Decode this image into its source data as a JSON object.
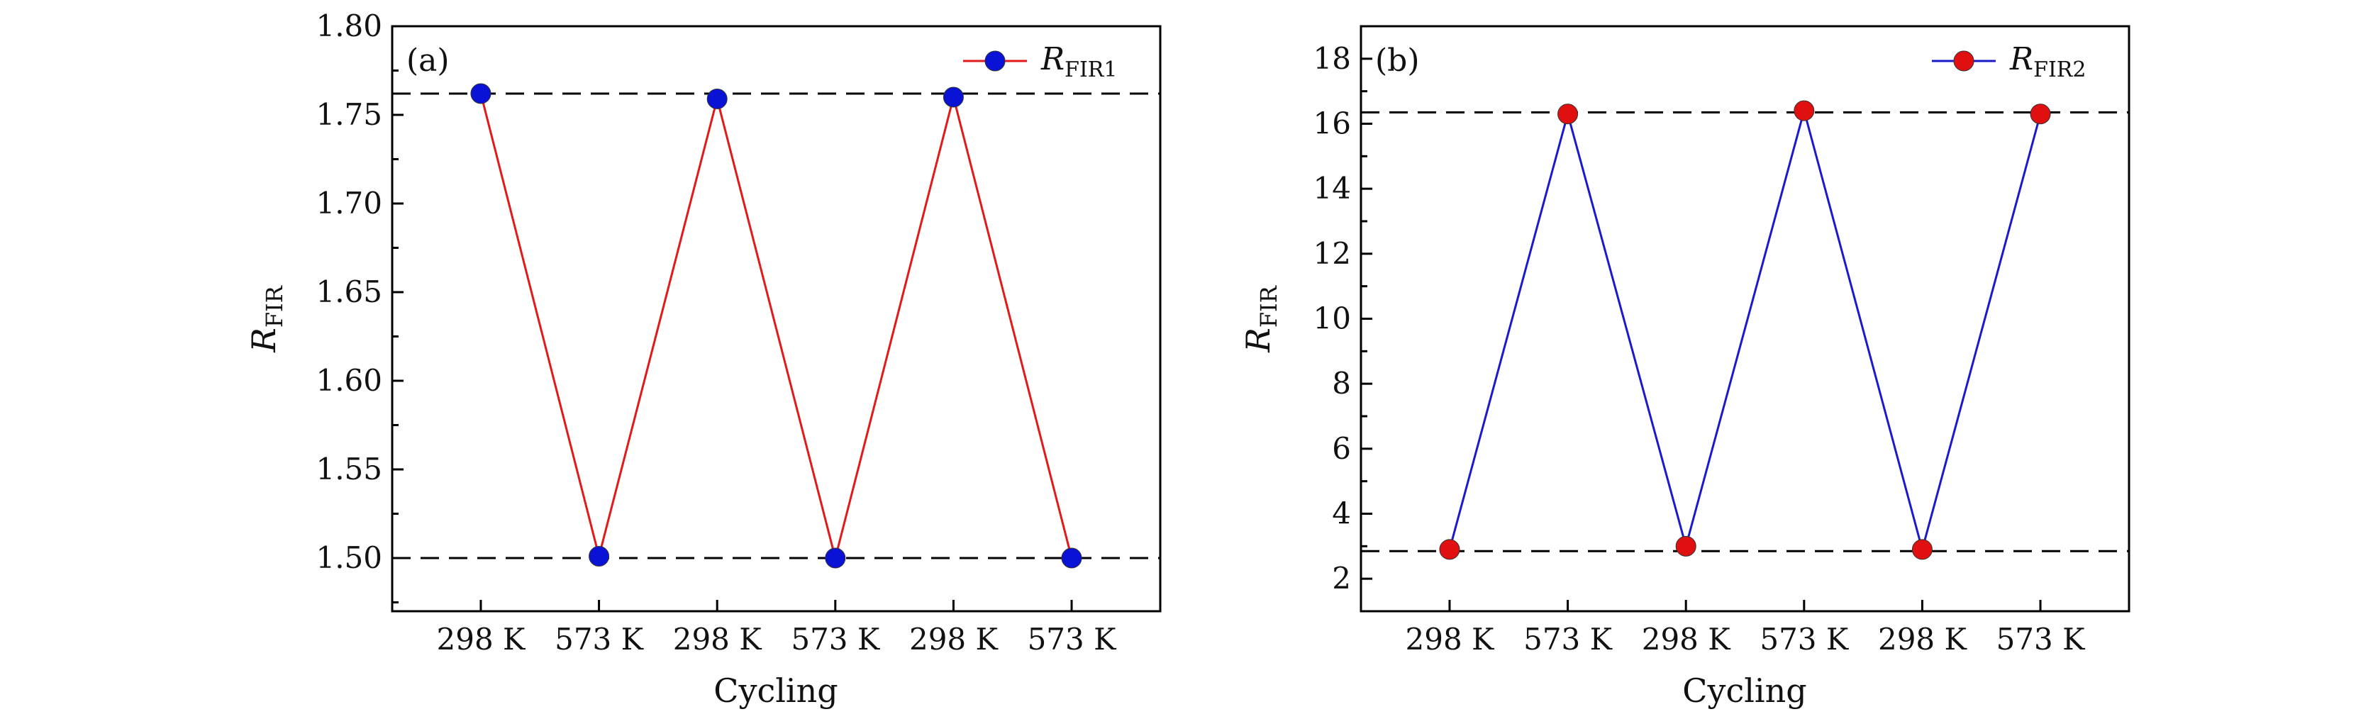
{
  "chart_data": [
    {
      "type": "line",
      "panel_label": "(a)",
      "xlabel": "Cycling",
      "ylabel_base": "R",
      "ylabel_sub": "FIR",
      "categories": [
        "298 K",
        "573 K",
        "298 K",
        "573 K",
        "298 K",
        "573 K"
      ],
      "series": [
        {
          "name_base": "R",
          "name_sub": "FIR1",
          "values": [
            1.762,
            1.501,
            1.759,
            1.5,
            1.76,
            1.5
          ],
          "line_color": "#e0191b",
          "marker_color": "#0a12d6"
        }
      ],
      "reference_lines": [
        1.762,
        1.5
      ],
      "ylim": [
        1.47,
        1.8
      ],
      "yticks": [
        1.5,
        1.55,
        1.6,
        1.65,
        1.7,
        1.75,
        1.8
      ],
      "ytick_labels": [
        "1.50",
        "1.55",
        "1.60",
        "1.65",
        "1.70",
        "1.75",
        "1.80"
      ],
      "legend_position": "top-right",
      "grid": false
    },
    {
      "type": "line",
      "panel_label": "(b)",
      "xlabel": "Cycling",
      "ylabel_base": "R",
      "ylabel_sub": "FIR",
      "categories": [
        "298 K",
        "573 K",
        "298 K",
        "573 K",
        "298 K",
        "573 K"
      ],
      "series": [
        {
          "name_base": "R",
          "name_sub": "FIR2",
          "values": [
            2.9,
            16.3,
            3.0,
            16.4,
            2.9,
            16.3
          ],
          "line_color": "#1a1acc",
          "marker_color": "#e01010"
        }
      ],
      "reference_lines": [
        16.35,
        2.85
      ],
      "ylim": [
        1,
        19
      ],
      "yticks": [
        2,
        4,
        6,
        8,
        10,
        12,
        14,
        16,
        18
      ],
      "ytick_labels": [
        "2",
        "4",
        "6",
        "8",
        "10",
        "12",
        "14",
        "16",
        "18"
      ],
      "legend_position": "top-right",
      "grid": false
    }
  ]
}
